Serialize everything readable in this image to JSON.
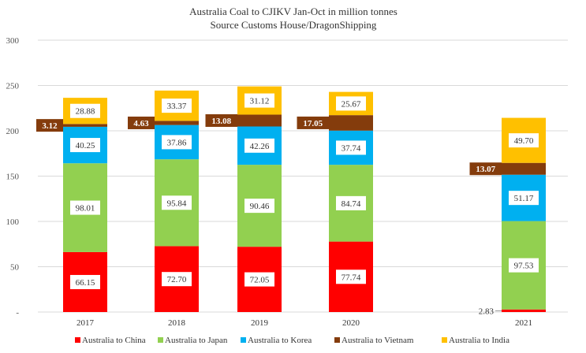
{
  "chart_data": {
    "type": "bar",
    "stacked": true,
    "title": "Australia Coal to CJIKV Jan-Oct in million tonnes",
    "subtitle": "Source Customs House/DragonShipping",
    "xlabel": "",
    "ylabel": "",
    "ylim": [
      0,
      300
    ],
    "yticks": [
      0,
      50,
      100,
      150,
      200,
      250,
      300
    ],
    "ytick_labels": [
      "-",
      "50",
      "100",
      "150",
      "200",
      "250",
      "300"
    ],
    "grid": true,
    "legend_position": "bottom",
    "categories": [
      "2017",
      "2018",
      "2019",
      "2020",
      "2021"
    ],
    "series": [
      {
        "name": "Australia to China",
        "color": "#ff0000",
        "values": [
          66.15,
          72.7,
          72.05,
          77.74,
          2.83
        ],
        "label_style": "white-box"
      },
      {
        "name": "Australia to Japan",
        "color": "#92d050",
        "values": [
          98.01,
          95.84,
          90.46,
          84.74,
          97.53
        ],
        "label_style": "white-box"
      },
      {
        "name": "Australia to Korea",
        "color": "#00b0f0",
        "values": [
          40.25,
          37.86,
          42.26,
          37.74,
          51.17
        ],
        "label_style": "white-box"
      },
      {
        "name": "Australia to Vietnam",
        "color": "#843c0c",
        "values": [
          3.12,
          4.63,
          13.08,
          17.05,
          13.07
        ],
        "label_style": "dark-box-left"
      },
      {
        "name": "Australia to India",
        "color": "#ffc000",
        "values": [
          28.88,
          33.37,
          31.12,
          25.67,
          49.7
        ],
        "label_style": "white-box"
      }
    ],
    "value_labels": [
      [
        "66.15",
        "72.70",
        "72.05",
        "77.74",
        "2.83"
      ],
      [
        "98.01",
        "95.84",
        "90.46",
        "84.74",
        "97.53"
      ],
      [
        "40.25",
        "37.86",
        "42.26",
        "37.74",
        "51.17"
      ],
      [
        "3.12",
        "4.63",
        "13.08",
        "17.05",
        "13.07"
      ],
      [
        "28.88",
        "33.37",
        "31.12",
        "25.67",
        "49.70"
      ]
    ]
  }
}
